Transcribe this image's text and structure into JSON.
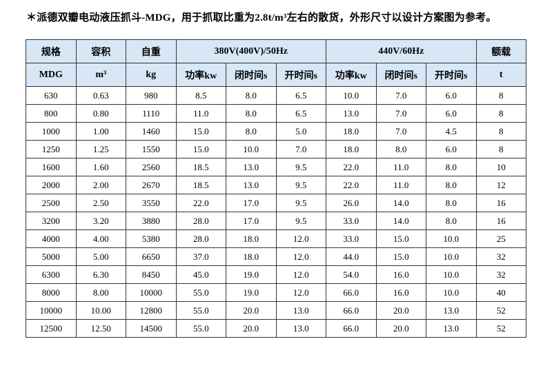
{
  "title": "＊派德双瓣电动液压抓斗-MDG，用于抓取比重为2.8t/m³左右的散货，外形尺寸以设计方案图为参考。",
  "colors": {
    "header_bg": "#d7e7f5",
    "border": "#333333",
    "page_bg": "#ffffff",
    "text": "#000000"
  },
  "table": {
    "header_row1": [
      "规格",
      "容积",
      "自重",
      "380V(400V)/50Hz",
      "440V/60Hz",
      "额载"
    ],
    "header_row2": [
      "MDG",
      "m³",
      "kg",
      "功率kw",
      "闭时间s",
      "开时间s",
      "功率kw",
      "闭时间s",
      "开时间s",
      "t"
    ],
    "rows": [
      [
        "630",
        "0.63",
        "980",
        "8.5",
        "8.0",
        "6.5",
        "10.0",
        "7.0",
        "6.0",
        "8"
      ],
      [
        "800",
        "0.80",
        "1110",
        "11.0",
        "8.0",
        "6.5",
        "13.0",
        "7.0",
        "6.0",
        "8"
      ],
      [
        "1000",
        "1.00",
        "1460",
        "15.0",
        "8.0",
        "5.0",
        "18.0",
        "7.0",
        "4.5",
        "8"
      ],
      [
        "1250",
        "1.25",
        "1550",
        "15.0",
        "10.0",
        "7.0",
        "18.0",
        "8.0",
        "6.0",
        "8"
      ],
      [
        "1600",
        "1.60",
        "2560",
        "18.5",
        "13.0",
        "9.5",
        "22.0",
        "11.0",
        "8.0",
        "10"
      ],
      [
        "2000",
        "2.00",
        "2670",
        "18.5",
        "13.0",
        "9.5",
        "22.0",
        "11.0",
        "8.0",
        "12"
      ],
      [
        "2500",
        "2.50",
        "3550",
        "22.0",
        "17.0",
        "9.5",
        "26.0",
        "14.0",
        "8.0",
        "16"
      ],
      [
        "3200",
        "3.20",
        "3880",
        "28.0",
        "17.0",
        "9.5",
        "33.0",
        "14.0",
        "8.0",
        "16"
      ],
      [
        "4000",
        "4.00",
        "5380",
        "28.0",
        "18.0",
        "12.0",
        "33.0",
        "15.0",
        "10.0",
        "25"
      ],
      [
        "5000",
        "5.00",
        "6650",
        "37.0",
        "18.0",
        "12.0",
        "44.0",
        "15.0",
        "10.0",
        "32"
      ],
      [
        "6300",
        "6.30",
        "8450",
        "45.0",
        "19.0",
        "12.0",
        "54.0",
        "16.0",
        "10.0",
        "32"
      ],
      [
        "8000",
        "8.00",
        "10000",
        "55.0",
        "19.0",
        "12.0",
        "66.0",
        "16.0",
        "10.0",
        "40"
      ],
      [
        "10000",
        "10.00",
        "12800",
        "55.0",
        "20.0",
        "13.0",
        "66.0",
        "20.0",
        "13.0",
        "52"
      ],
      [
        "12500",
        "12.50",
        "14500",
        "55.0",
        "20.0",
        "13.0",
        "66.0",
        "20.0",
        "13.0",
        "52"
      ]
    ]
  }
}
